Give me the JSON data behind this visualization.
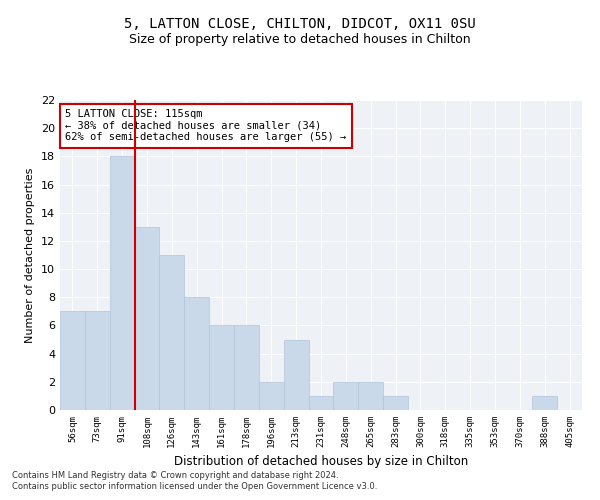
{
  "title": "5, LATTON CLOSE, CHILTON, DIDCOT, OX11 0SU",
  "subtitle": "Size of property relative to detached houses in Chilton",
  "xlabel": "Distribution of detached houses by size in Chilton",
  "ylabel": "Number of detached properties",
  "bar_color": "#c9d9ea",
  "bar_edge_color": "#b0c4d8",
  "categories": [
    "56sqm",
    "73sqm",
    "91sqm",
    "108sqm",
    "126sqm",
    "143sqm",
    "161sqm",
    "178sqm",
    "196sqm",
    "213sqm",
    "231sqm",
    "248sqm",
    "265sqm",
    "283sqm",
    "300sqm",
    "318sqm",
    "335sqm",
    "353sqm",
    "370sqm",
    "388sqm",
    "405sqm"
  ],
  "values": [
    7,
    7,
    18,
    13,
    11,
    8,
    6,
    6,
    2,
    5,
    1,
    2,
    2,
    1,
    0,
    0,
    0,
    0,
    0,
    1,
    0
  ],
  "vline_color": "#cc0000",
  "vline_index": 2.5,
  "annotation_line1": "5 LATTON CLOSE: 115sqm",
  "annotation_line2": "← 38% of detached houses are smaller (34)",
  "annotation_line3": "62% of semi-detached houses are larger (55) →",
  "annotation_box_color": "#ffffff",
  "annotation_box_edge_color": "#cc0000",
  "ylim": [
    0,
    22
  ],
  "yticks": [
    0,
    2,
    4,
    6,
    8,
    10,
    12,
    14,
    16,
    18,
    20,
    22
  ],
  "footnote1": "Contains HM Land Registry data © Crown copyright and database right 2024.",
  "footnote2": "Contains public sector information licensed under the Open Government Licence v3.0.",
  "background_color": "#eef2f7",
  "grid_color": "#ffffff",
  "title_fontsize": 10,
  "subtitle_fontsize": 9
}
